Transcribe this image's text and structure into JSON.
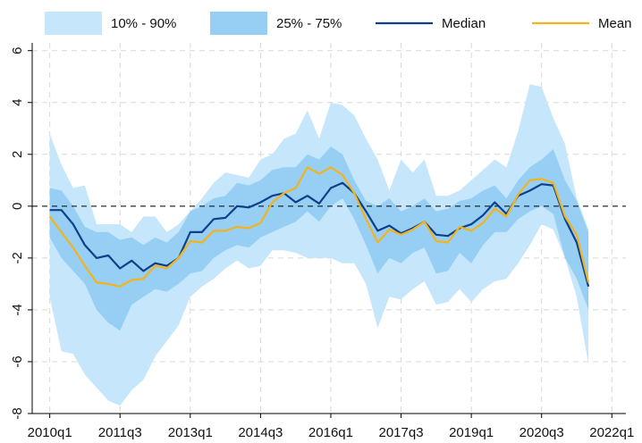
{
  "chart_data": {
    "type": "line",
    "x": [
      0,
      1,
      2,
      3,
      4,
      5,
      6,
      7,
      8,
      9,
      10,
      11,
      12,
      13,
      14,
      15,
      16,
      17,
      18,
      19,
      20,
      21,
      22,
      23,
      24,
      25,
      26,
      27,
      28,
      29,
      30,
      31,
      32,
      33,
      34,
      35,
      36,
      37,
      38,
      39,
      40,
      41,
      42,
      43,
      44,
      45,
      46
    ],
    "xlim": [
      -1.5,
      49.2
    ],
    "xticks": [
      {
        "value": 0,
        "label": "2010q1"
      },
      {
        "value": 6,
        "label": "2011q3"
      },
      {
        "value": 12,
        "label": "2013q1"
      },
      {
        "value": 18,
        "label": "2014q3"
      },
      {
        "value": 24,
        "label": "2016q1"
      },
      {
        "value": 30,
        "label": "2017q3"
      },
      {
        "value": 36,
        "label": "2019q1"
      },
      {
        "value": 42,
        "label": "2020q3"
      },
      {
        "value": 48,
        "label": "2022q1"
      }
    ],
    "ylim": [
      -8,
      6.3
    ],
    "yticks": [
      -8,
      -6,
      -4,
      -2,
      0,
      2,
      4,
      6
    ],
    "grid": true,
    "hline": 0,
    "legend": "top",
    "series": [
      {
        "name": "10% - 90%",
        "color": "#c5e6fb",
        "lower": [
          -3.5,
          -5.6,
          -5.7,
          -6.5,
          -7.0,
          -7.5,
          -7.7,
          -7.1,
          -6.7,
          -5.8,
          -5.2,
          -4.6,
          -3.5,
          -3.1,
          -2.8,
          -2.4,
          -2.1,
          -2.4,
          -2.3,
          -1.7,
          -1.7,
          -1.8,
          -2.0,
          -2.0,
          -2.0,
          -2.2,
          -2.2,
          -3.0,
          -4.7,
          -3.5,
          -3.6,
          -3.2,
          -2.9,
          -3.8,
          -3.7,
          -3.2,
          -3.7,
          -3.2,
          -2.9,
          -2.8,
          -2.2,
          -1.5,
          -0.7,
          -0.9,
          -2.0,
          -3.5,
          -6.1
        ],
        "upper": [
          2.8,
          1.6,
          0.7,
          0.8,
          -0.7,
          -0.7,
          -0.7,
          -1.0,
          -0.4,
          -0.4,
          -1.0,
          -0.7,
          -0.2,
          0.3,
          0.9,
          1.3,
          1.2,
          1.1,
          1.8,
          2.0,
          2.6,
          2.8,
          3.7,
          2.6,
          4.0,
          3.9,
          3.5,
          2.6,
          1.8,
          0.6,
          1.8,
          1.3,
          1.8,
          0.4,
          0.4,
          0.6,
          1.0,
          1.4,
          1.8,
          1.5,
          2.9,
          4.7,
          4.6,
          3.4,
          2.4,
          0.3,
          -0.9
        ]
      },
      {
        "name": "25% - 75%",
        "color": "#97cff4",
        "lower": [
          -1.2,
          -2.0,
          -2.5,
          -3.0,
          -4.0,
          -4.5,
          -4.8,
          -3.8,
          -3.5,
          -3.2,
          -3.3,
          -3.0,
          -2.6,
          -2.5,
          -2.0,
          -1.7,
          -1.5,
          -1.6,
          -1.2,
          -1.0,
          -0.8,
          -0.6,
          -0.2,
          -0.6,
          0.0,
          0.3,
          -0.5,
          -1.5,
          -2.6,
          -2.0,
          -2.2,
          -1.8,
          -1.6,
          -2.6,
          -2.5,
          -1.8,
          -2.2,
          -1.5,
          -1.0,
          -1.0,
          -0.5,
          -0.2,
          0.0,
          -0.3,
          -2.0,
          -2.8,
          -4.0
        ],
        "upper": [
          0.7,
          0.6,
          0.0,
          -0.8,
          -1.0,
          -1.0,
          -1.3,
          -1.2,
          -1.5,
          -1.2,
          -1.4,
          -1.0,
          -0.2,
          0.0,
          0.3,
          0.4,
          0.9,
          0.8,
          1.0,
          1.4,
          1.5,
          1.5,
          2.0,
          1.8,
          2.3,
          2.0,
          1.0,
          0.2,
          0.0,
          0.3,
          -0.2,
          0.0,
          0.3,
          -0.2,
          -0.1,
          0.2,
          0.3,
          0.6,
          0.8,
          0.3,
          1.0,
          1.5,
          1.8,
          2.2,
          1.0,
          0.2,
          -1.0
        ]
      },
      {
        "name": "Median",
        "color": "#0e3f8a",
        "values": [
          -0.15,
          -0.15,
          -0.7,
          -1.5,
          -2.0,
          -1.9,
          -2.4,
          -2.1,
          -2.5,
          -2.2,
          -2.3,
          -2.0,
          -1.0,
          -1.0,
          -0.5,
          -0.45,
          0.0,
          -0.05,
          0.15,
          0.4,
          0.5,
          0.15,
          0.4,
          0.1,
          0.7,
          0.9,
          0.5,
          -0.2,
          -0.95,
          -0.75,
          -1.05,
          -0.85,
          -0.6,
          -1.1,
          -1.15,
          -0.85,
          -0.7,
          -0.35,
          0.15,
          -0.3,
          0.4,
          0.6,
          0.85,
          0.8,
          -0.5,
          -1.4,
          -3.1
        ]
      },
      {
        "name": "Mean",
        "color": "#f2b31c",
        "values": [
          -0.4,
          -1.0,
          -1.6,
          -2.3,
          -2.95,
          -3.0,
          -3.1,
          -2.85,
          -2.8,
          -2.3,
          -2.4,
          -2.0,
          -1.35,
          -1.4,
          -0.95,
          -0.95,
          -0.8,
          -0.85,
          -0.65,
          0.15,
          0.5,
          0.7,
          1.5,
          1.25,
          1.5,
          1.2,
          0.5,
          -0.5,
          -1.4,
          -0.9,
          -1.1,
          -0.9,
          -0.6,
          -1.35,
          -1.4,
          -0.8,
          -0.95,
          -0.65,
          -0.1,
          -0.4,
          0.45,
          1.0,
          1.05,
          0.9,
          -0.4,
          -1.1,
          -2.95
        ]
      }
    ]
  }
}
